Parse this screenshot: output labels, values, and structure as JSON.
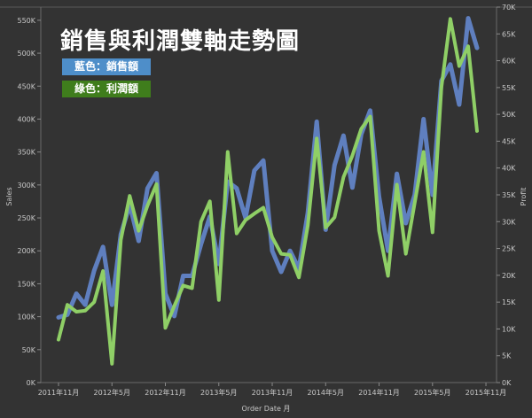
{
  "title": "銷售與利潤雙軸走勢圖",
  "legend": {
    "sales_label": "藍色：銷售額",
    "profit_label": "綠色：利潤額"
  },
  "colors": {
    "background": "#333333",
    "sales": "#5f7fbf",
    "profit": "#8fcf66",
    "grid": "#5a5a5a",
    "text": "#c8c8c8"
  },
  "chart_data": {
    "type": "line",
    "xlabel": "Order Date 月",
    "ylabel_left": "Sales",
    "ylabel_right": "Profit",
    "ylim_left": [
      0,
      570000
    ],
    "ylim_right": [
      0,
      70000
    ],
    "left_ticks": [
      "0K",
      "50K",
      "100K",
      "150K",
      "200K",
      "250K",
      "300K",
      "350K",
      "400K",
      "450K",
      "500K",
      "550K"
    ],
    "right_ticks": [
      "0K",
      "5K",
      "10K",
      "15K",
      "20K",
      "25K",
      "30K",
      "35K",
      "40K",
      "45K",
      "50K",
      "55K",
      "60K",
      "65K",
      "70K"
    ],
    "x_tick_labels": [
      "2011年11月",
      "2012年5月",
      "2012年11月",
      "2013年5月",
      "2013年11月",
      "2014年5月",
      "2014年11月",
      "2015年5月",
      "2015年11月"
    ],
    "x_tick_index": [
      0,
      6,
      12,
      18,
      24,
      30,
      36,
      42,
      48
    ],
    "series": [
      {
        "name": "Sales",
        "axis": "left",
        "values": [
          99000,
          103000,
          135000,
          118000,
          170000,
          206000,
          118000,
          225000,
          270000,
          215000,
          295000,
          318000,
          135000,
          101000,
          162000,
          162000,
          210000,
          252000,
          180000,
          305000,
          295000,
          250000,
          322000,
          337000,
          200000,
          168000,
          200000,
          173000,
          258000,
          396000,
          232000,
          330000,
          375000,
          296000,
          377000,
          413000,
          282000,
          200000,
          317000,
          242000,
          285000,
          400000,
          285000,
          458000,
          483000,
          422000,
          553000,
          508000
        ]
      },
      {
        "name": "Profit",
        "axis": "right",
        "values": [
          8000,
          14500,
          13200,
          13400,
          15000,
          20800,
          3500,
          26600,
          34800,
          28300,
          33000,
          37000,
          10200,
          14300,
          18100,
          17600,
          30000,
          33800,
          15400,
          43000,
          27800,
          30300,
          31500,
          32600,
          27100,
          24000,
          23800,
          19600,
          29300,
          45500,
          28900,
          30800,
          38300,
          42300,
          47300,
          49600,
          28300,
          19900,
          36900,
          24000,
          33500,
          43000,
          28000,
          55000,
          67800,
          59000,
          62700,
          46900
        ]
      }
    ]
  }
}
